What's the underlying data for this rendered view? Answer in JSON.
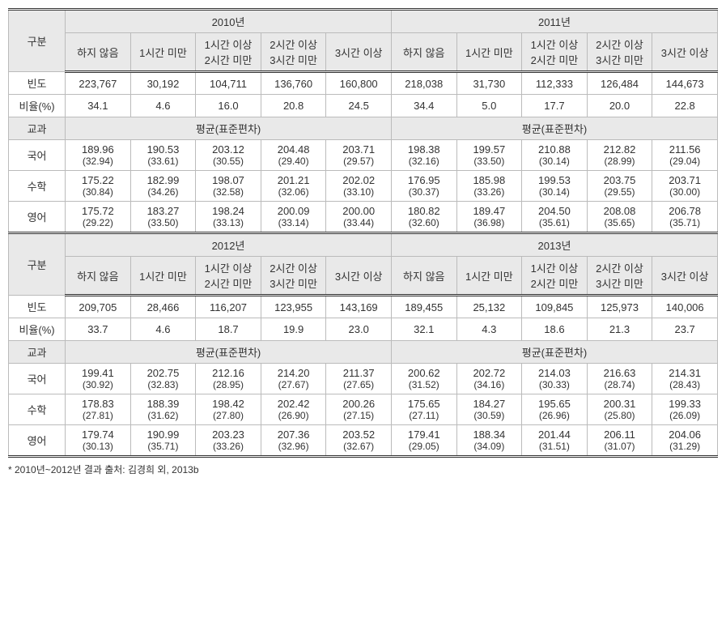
{
  "header": {
    "gubun": "구분",
    "period": {
      "y2010": "2010년",
      "y2011": "2011년",
      "y2012": "2012년",
      "y2013": "2013년"
    },
    "buckets": {
      "b0": "하지 않음",
      "b1": "1시간 미만",
      "b2a": "1시간 이상",
      "b2b": "2시간 미만",
      "b3a": "2시간 이상",
      "b3b": "3시간 미만",
      "b4": "3시간 이상"
    },
    "rows": {
      "freq": "빈도",
      "pct": "비율(%)",
      "subject": "교과",
      "meanSd": "평균(표준편차)",
      "korean": "국어",
      "math": "수학",
      "english": "영어"
    }
  },
  "data": {
    "y2010": {
      "freq": [
        "223,767",
        "30,192",
        "104,711",
        "136,760",
        "160,800"
      ],
      "pct": [
        "34.1",
        "4.6",
        "16.0",
        "20.8",
        "24.5"
      ],
      "korean": {
        "m": [
          "189.96",
          "190.53",
          "203.12",
          "204.48",
          "203.71"
        ],
        "sd": [
          "(32.94)",
          "(33.61)",
          "(30.55)",
          "(29.40)",
          "(29.57)"
        ]
      },
      "math": {
        "m": [
          "175.22",
          "182.99",
          "198.07",
          "201.21",
          "202.02"
        ],
        "sd": [
          "(30.84)",
          "(34.26)",
          "(32.58)",
          "(32.06)",
          "(33.10)"
        ]
      },
      "english": {
        "m": [
          "175.72",
          "183.27",
          "198.24",
          "200.09",
          "200.00"
        ],
        "sd": [
          "(29.22)",
          "(33.50)",
          "(33.13)",
          "(33.14)",
          "(33.44)"
        ]
      }
    },
    "y2011": {
      "freq": [
        "218,038",
        "31,730",
        "112,333",
        "126,484",
        "144,673"
      ],
      "pct": [
        "34.4",
        "5.0",
        "17.7",
        "20.0",
        "22.8"
      ],
      "korean": {
        "m": [
          "198.38",
          "199.57",
          "210.88",
          "212.82",
          "211.56"
        ],
        "sd": [
          "(32.16)",
          "(33.50)",
          "(30.14)",
          "(28.99)",
          "(29.04)"
        ]
      },
      "math": {
        "m": [
          "176.95",
          "185.98",
          "199.53",
          "203.75",
          "203.71"
        ],
        "sd": [
          "(30.37)",
          "(33.26)",
          "(30.14)",
          "(29.55)",
          "(30.00)"
        ]
      },
      "english": {
        "m": [
          "180.82",
          "189.47",
          "204.50",
          "208.08",
          "206.78"
        ],
        "sd": [
          "(32.60)",
          "(36.98)",
          "(35.61)",
          "(35.65)",
          "(35.71)"
        ]
      }
    },
    "y2012": {
      "freq": [
        "209,705",
        "28,466",
        "116,207",
        "123,955",
        "143,169"
      ],
      "pct": [
        "33.7",
        "4.6",
        "18.7",
        "19.9",
        "23.0"
      ],
      "korean": {
        "m": [
          "199.41",
          "202.75",
          "212.16",
          "214.20",
          "211.37"
        ],
        "sd": [
          "(30.92)",
          "(32.83)",
          "(28.95)",
          "(27.67)",
          "(27.65)"
        ]
      },
      "math": {
        "m": [
          "178.83",
          "188.39",
          "198.42",
          "202.42",
          "200.26"
        ],
        "sd": [
          "(27.81)",
          "(31.62)",
          "(27.80)",
          "(26.90)",
          "(27.15)"
        ]
      },
      "english": {
        "m": [
          "179.74",
          "190.99",
          "203.23",
          "207.36",
          "203.52"
        ],
        "sd": [
          "(30.13)",
          "(35.71)",
          "(33.26)",
          "(32.96)",
          "(32.67)"
        ]
      }
    },
    "y2013": {
      "freq": [
        "189,455",
        "25,132",
        "109,845",
        "125,973",
        "140,006"
      ],
      "pct": [
        "32.1",
        "4.3",
        "18.6",
        "21.3",
        "23.7"
      ],
      "korean": {
        "m": [
          "200.62",
          "202.72",
          "214.03",
          "216.63",
          "214.31"
        ],
        "sd": [
          "(31.52)",
          "(34.16)",
          "(30.33)",
          "(28.74)",
          "(28.43)"
        ]
      },
      "math": {
        "m": [
          "175.65",
          "184.27",
          "195.65",
          "200.31",
          "199.33"
        ],
        "sd": [
          "(27.11)",
          "(30.59)",
          "(26.96)",
          "(25.80)",
          "(26.09)"
        ]
      },
      "english": {
        "m": [
          "179.41",
          "188.34",
          "201.44",
          "206.11",
          "204.06"
        ],
        "sd": [
          "(29.05)",
          "(34.09)",
          "(31.51)",
          "(31.07)",
          "(31.29)"
        ]
      }
    }
  },
  "footnote": "* 2010년~2012년 결과 출처: 김경희 외, 2013b"
}
